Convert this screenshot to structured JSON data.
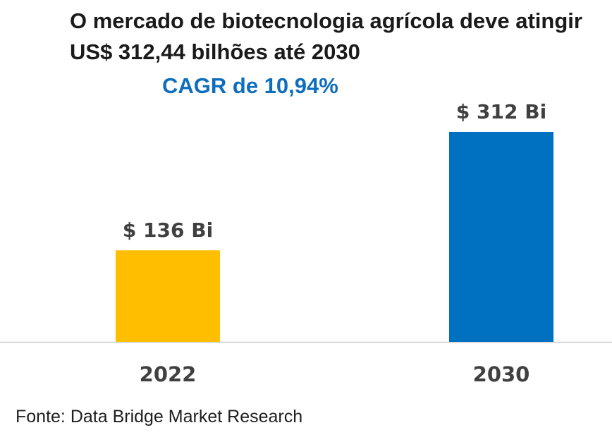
{
  "chart_data": {
    "type": "bar",
    "title": "O mercado de biotecnologia agrícola deve atingir US$ 312,44 bilhões até 2030",
    "subtitle": "CAGR de 10,94%",
    "categories": [
      "2022",
      "2030"
    ],
    "values": [
      136,
      312
    ],
    "data_labels": [
      "$ 136 Bi",
      "$ 312 Bi"
    ],
    "colors": [
      "#ffbf00",
      "#0070c0"
    ],
    "ylim": [
      0,
      312
    ],
    "xlabel": "",
    "ylabel": "",
    "grid": false,
    "legend": "none"
  },
  "source": "Fonte: Data Bridge Market Research"
}
